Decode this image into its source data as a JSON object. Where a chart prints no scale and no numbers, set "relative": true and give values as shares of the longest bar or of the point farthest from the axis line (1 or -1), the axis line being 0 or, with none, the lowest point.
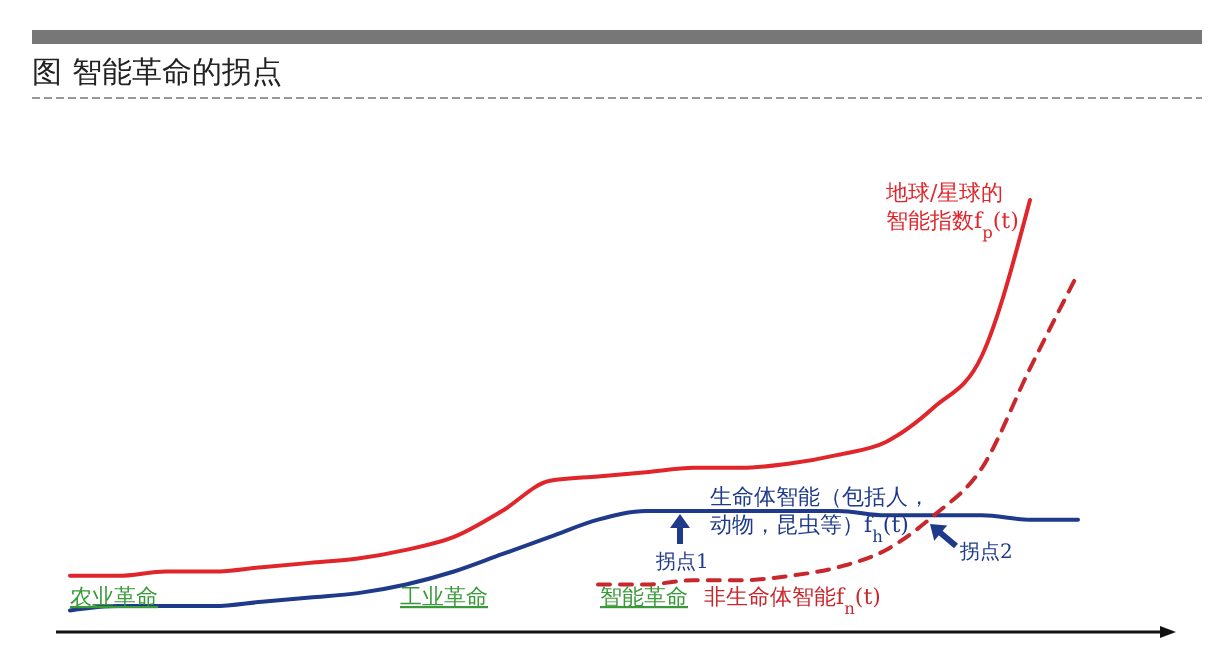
{
  "chart_data": {
    "type": "line",
    "title": "图 智能革命的拐点",
    "relative": true,
    "marker": "none",
    "categories": [
      null,
      null,
      null,
      null,
      null,
      null,
      null,
      null,
      null,
      null,
      null,
      null,
      null,
      null,
      null,
      null,
      null,
      null,
      null,
      null,
      null,
      null
    ],
    "series": [
      {
        "name": "地球/星球的智能指数f$_{p}$(t)",
        "color": "#e0262b",
        "line_style": "solid",
        "values": [
          0.13,
          0.13,
          0.14,
          0.14,
          0.15,
          0.16,
          0.17,
          0.19,
          0.22,
          0.28,
          0.35,
          0.36,
          0.37,
          0.38,
          0.38,
          0.39,
          0.41,
          0.44,
          0.52,
          0.64,
          1,
          null
        ]
      },
      {
        "name": "生命体智能（包括人，动物，昆虫等）f$_{h}$(t)",
        "color": "#1f3a8a",
        "line_style": "solid",
        "values": [
          0.05,
          0.06,
          0.06,
          0.06,
          0.07,
          0.08,
          0.09,
          0.11,
          0.14,
          0.18,
          0.22,
          0.26,
          0.28,
          0.28,
          0.28,
          0.28,
          0.28,
          0.27,
          0.27,
          0.27,
          0.26,
          0.26
        ]
      },
      {
        "name": "非生命体智能f$_{n}$(t)",
        "color": "#c8282d",
        "line_style": "dashed",
        "values": [
          null,
          null,
          null,
          null,
          null,
          null,
          null,
          null,
          null,
          null,
          null,
          0.11,
          0.11,
          0.12,
          0.12,
          0.13,
          0.15,
          0.19,
          0.27,
          0.38,
          0.61,
          0.83
        ]
      }
    ],
    "annotations": [
      "农业革命",
      "工业革命",
      "智能革命",
      "拐点1",
      "拐点2"
    ]
  }
}
